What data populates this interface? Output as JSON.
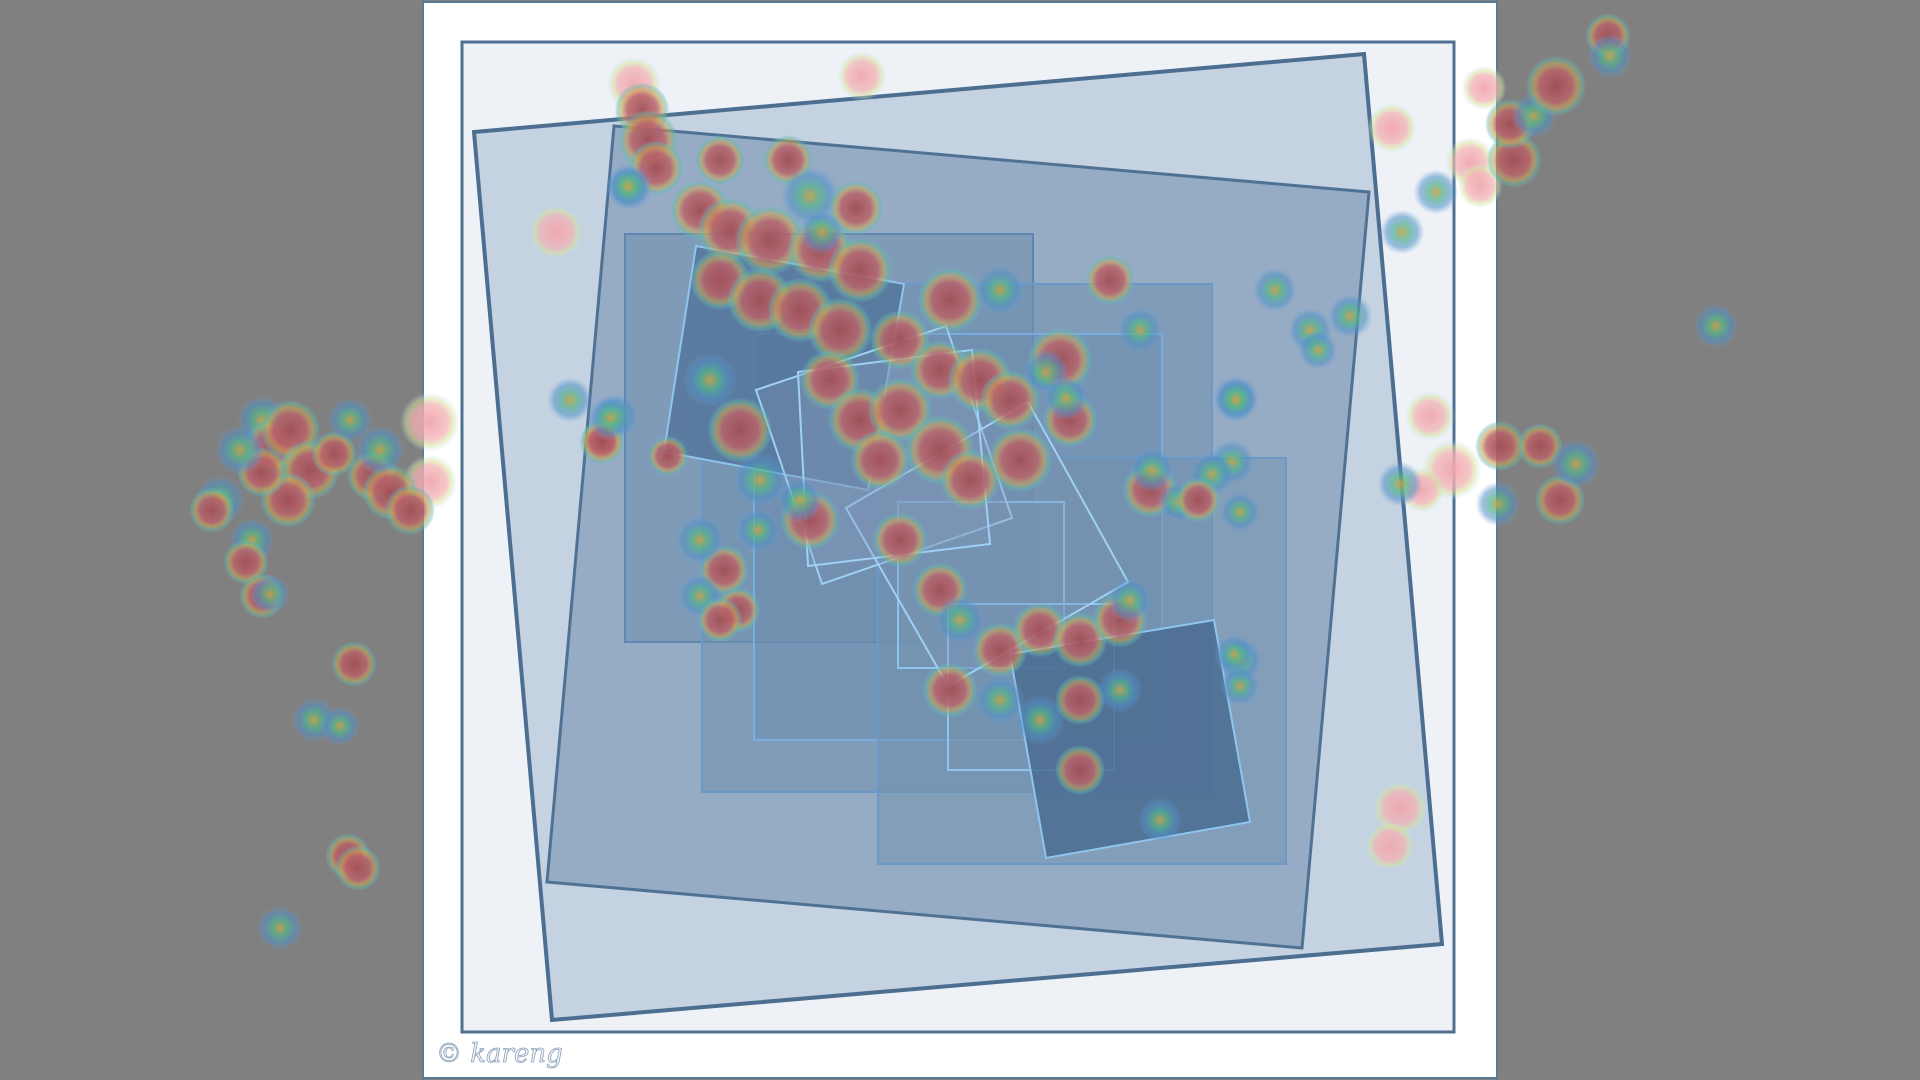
{
  "artwork": {
    "copyright_text": "© kareng",
    "colors": {
      "backdrop": "#808080",
      "paper": "#ffffff",
      "mat": "#eef2f7",
      "outline": "#4c6e90",
      "light_square": "#c3d1e0",
      "mid_square": "#90a7c0",
      "deep_square": "#6f8fae",
      "darkest_square": "#4a6c90",
      "cyan_outline": "#8ec5ef",
      "heat_hot": "#b65a5c",
      "heat_warm": "#e8a0a6",
      "heat_cool": "#6fb3c9"
    }
  }
}
